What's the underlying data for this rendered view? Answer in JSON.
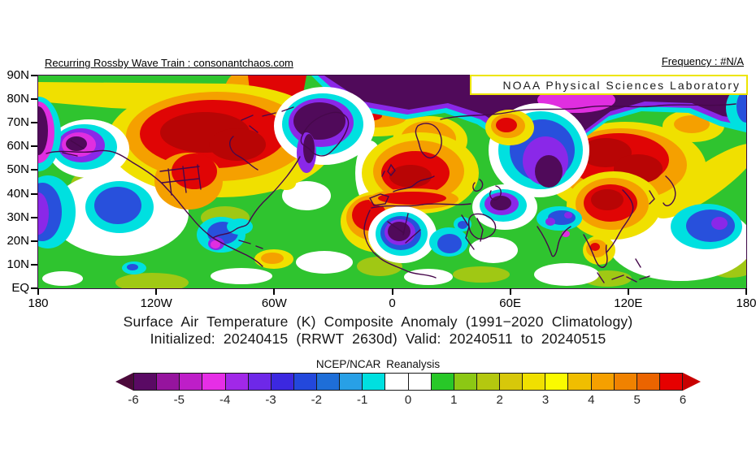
{
  "header": {
    "rossby_link": "Recurring Rossby Wave Train : consonantchaos.com",
    "frequency_label": "Frequency : #N/A",
    "banner": "NOAA Physical Sciences Laboratory"
  },
  "map": {
    "lat_ticks": [
      "90N",
      "80N",
      "70N",
      "60N",
      "50N",
      "40N",
      "30N",
      "20N",
      "10N",
      "EQ"
    ],
    "lon_ticks": [
      "180",
      "120W",
      "60W",
      "0",
      "60E",
      "120E",
      "180"
    ]
  },
  "titles": {
    "line1": "Surface Air Temperature (K) Composite Anomaly (1991−2020 Climatology)",
    "line2": "Initialized: 20240415 (RRWT 2630d) Valid: 20240511 to 20240515",
    "colorbar_title": "NCEP/NCAR Reanalysis"
  },
  "colorbar": {
    "tick_labels": [
      "-6",
      "-5",
      "-4",
      "-3",
      "-2",
      "-1",
      "0",
      "1",
      "2",
      "3",
      "4",
      "5",
      "6"
    ],
    "box_colors": [
      "#5a0a64",
      "#96149e",
      "#be1ec8",
      "#e62ee6",
      "#a128e8",
      "#6e28e8",
      "#3c28e0",
      "#2348dc",
      "#1e6ed8",
      "#28a0e6",
      "#00e0e0",
      "#ffffff",
      "#ffffff",
      "#28c828",
      "#8cc814",
      "#b4c80f",
      "#d7c80a",
      "#f0e000",
      "#fafa00",
      "#f0be00",
      "#f5a000",
      "#f08200",
      "#eb6400",
      "#e60000"
    ],
    "arrow_left_color": "#4c0a3c",
    "arrow_right_color": "#c80000"
  },
  "chart_data": {
    "type": "heatmap",
    "subtype": "filled-contour geographic composite anomaly map",
    "title": "Surface Air Temperature (K) Composite Anomaly (1991−2020 Climatology)",
    "variable": "Surface Air Temperature",
    "units": "K",
    "climatology": "1991-2020",
    "initialized": "20240415",
    "composite": "RRWT 2630d",
    "valid": "20240511 to 20240515",
    "dataset": "NCEP/NCAR Reanalysis",
    "source_text": "Recurring Rossby Wave Train : consonantchaos.com",
    "frequency": "#N/A",
    "x_axis": {
      "label": "longitude",
      "ticks": [
        "180",
        "120W",
        "60W",
        "0",
        "60E",
        "120E",
        "180"
      ],
      "range_deg": [
        -180,
        180
      ]
    },
    "y_axis": {
      "label": "latitude",
      "ticks": [
        "EQ",
        "10N",
        "20N",
        "30N",
        "40N",
        "50N",
        "60N",
        "70N",
        "80N",
        "90N"
      ],
      "range_deg": [
        0,
        90
      ]
    },
    "colorbar": {
      "min": -6,
      "max": 6,
      "box_interval": 0.5,
      "tick_step": 1,
      "arrows_beyond_range": true,
      "legend_position": "bottom-center"
    },
    "grid": false,
    "notable_anomalies_K": [
      {
        "region": "Arctic Ocean 75-90N across most longitudes",
        "value": -6
      },
      {
        "region": "Central and eastern Canada",
        "value": 5.5
      },
      {
        "region": "Northern US plains / Rockies",
        "value": 4
      },
      {
        "region": "Alaska interior",
        "value": -6
      },
      {
        "region": "Greenland",
        "value": -6
      },
      {
        "region": "North Atlantic band 65-70N",
        "value": 4
      },
      {
        "region": "Western and central Europe",
        "value": 5
      },
      {
        "region": "Scandinavia",
        "value": 3.5
      },
      {
        "region": "Western Sahara (~20N, 0E)",
        "value": -6
      },
      {
        "region": "Egypt / Sudan",
        "value": -2.5
      },
      {
        "region": "Iran / Caspian region",
        "value": -6
      },
      {
        "region": "Central Siberia 60-95E",
        "value": -4
      },
      {
        "region": "Mongolia / eastern Siberia",
        "value": 5.5
      },
      {
        "region": "Eastern China",
        "value": 5
      },
      {
        "region": "Indochina (Vietnam)",
        "value": 3.5
      },
      {
        "region": "North India / Himalayas",
        "value": -3
      },
      {
        "region": "Northeast Pacific (~135W, 30N)",
        "value": -3
      },
      {
        "region": "Gulf of Mexico / Florida",
        "value": -3
      },
      {
        "region": "Northwest Pacific (~160E, 27N)",
        "value": -3
      },
      {
        "region": "Tropical background",
        "value": 1
      }
    ]
  }
}
